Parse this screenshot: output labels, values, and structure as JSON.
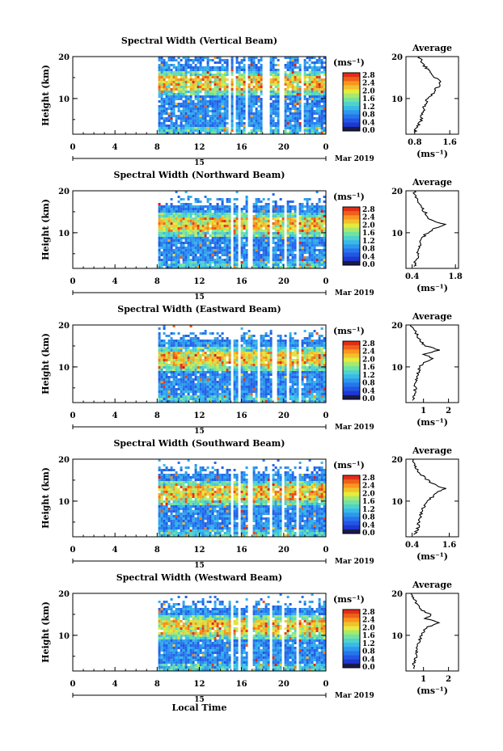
{
  "page": {
    "x_axis_title": "Local Time",
    "date_label": "Mar 2019",
    "day_label": "15",
    "colorbar_unit": "(ms⁻¹)",
    "avg_title": "Average",
    "avg_unit": "(ms⁻¹)",
    "y_label": "Height (km)"
  },
  "chart_data": [
    {
      "type": "heatmap",
      "title": "Spectral Width (Vertical Beam)",
      "ylabel": "Height (km)",
      "xlabel": "Local Time",
      "x_ticks": [
        "0",
        "4",
        "8",
        "12",
        "16",
        "20",
        "0"
      ],
      "y_ticks": [
        "20",
        "10"
      ],
      "xlim": [
        0,
        24
      ],
      "ylim": [
        1.5,
        20
      ],
      "data_start_hour": 8.1,
      "gaps_hours": [
        [
          14.8,
          15.0
        ],
        [
          15.3,
          15.5
        ],
        [
          16.4,
          16.6
        ],
        [
          18.1,
          18.6
        ],
        [
          19.7,
          20.1
        ],
        [
          21.7,
          22.0
        ]
      ],
      "colorbar": {
        "unit": "(ms⁻¹)",
        "ticks": [
          "2.8",
          "2.4",
          "2.0",
          "1.6",
          "1.2",
          "0.8",
          "0.4",
          "0.0"
        ],
        "range": [
          0,
          2.8
        ]
      },
      "profile": {
        "title": "Average",
        "xlabel": "(ms⁻¹)",
        "x_ticks": [
          "0.8",
          "1.6"
        ],
        "xlim": [
          0.6,
          1.8
        ],
        "y_ticks": [
          "20",
          "10"
        ],
        "height": [
          2,
          3,
          4,
          5,
          6,
          7,
          8,
          9,
          10,
          11,
          12,
          13,
          14,
          15,
          16,
          17,
          18,
          19,
          20
        ],
        "values": [
          0.8,
          0.85,
          0.9,
          0.95,
          0.95,
          1.0,
          1.0,
          1.05,
          1.1,
          1.2,
          1.25,
          1.35,
          1.4,
          1.25,
          1.15,
          1.1,
          1.0,
          0.95,
          0.9
        ]
      }
    },
    {
      "type": "heatmap",
      "title": "Spectral Width (Northward Beam)",
      "ylabel": "Height (km)",
      "xlabel": "Local Time",
      "x_ticks": [
        "0",
        "4",
        "8",
        "12",
        "16",
        "20",
        "0"
      ],
      "y_ticks": [
        "20",
        "10"
      ],
      "xlim": [
        0,
        24
      ],
      "ylim": [
        1.5,
        20
      ],
      "data_start_hour": 8.1,
      "gaps_hours": [
        [
          14.9,
          15.2
        ],
        [
          15.6,
          15.9
        ],
        [
          16.7,
          17.0
        ],
        [
          18.6,
          19.0
        ],
        [
          20.0,
          20.3
        ],
        [
          21.2,
          21.5
        ]
      ],
      "colorbar": {
        "unit": "(ms⁻¹)",
        "ticks": [
          "2.8",
          "2.4",
          "2.0",
          "1.6",
          "1.2",
          "0.8",
          "0.4",
          "0.0"
        ],
        "range": [
          0,
          2.8
        ]
      },
      "profile": {
        "title": "Average",
        "xlabel": "(ms⁻¹)",
        "x_ticks": [
          "0.4",
          "1.8"
        ],
        "xlim": [
          0.2,
          1.9
        ],
        "y_ticks": [
          "20",
          "10"
        ],
        "height": [
          2,
          3,
          4,
          5,
          6,
          7,
          8,
          9,
          10,
          11,
          12,
          13,
          14,
          15,
          16,
          17,
          18,
          19,
          20
        ],
        "values": [
          0.5,
          0.5,
          0.55,
          0.6,
          0.6,
          0.65,
          0.7,
          0.75,
          0.9,
          1.1,
          1.45,
          1.0,
          0.9,
          0.8,
          0.7,
          0.6,
          0.55,
          0.5,
          0.45
        ]
      }
    },
    {
      "type": "heatmap",
      "title": "Spectral Width (Eastward Beam)",
      "ylabel": "Height (km)",
      "xlabel": "Local Time",
      "x_ticks": [
        "0",
        "4",
        "8",
        "12",
        "16",
        "20",
        "0"
      ],
      "y_ticks": [
        "20",
        "10"
      ],
      "xlim": [
        0,
        24
      ],
      "ylim": [
        1.5,
        20
      ],
      "data_start_hour": 8.1,
      "gaps_hours": [
        [
          14.9,
          15.2
        ],
        [
          15.6,
          15.9
        ],
        [
          17.5,
          17.8
        ],
        [
          19.0,
          19.3
        ],
        [
          20.2,
          20.5
        ],
        [
          21.4,
          21.7
        ]
      ],
      "colorbar": {
        "unit": "(ms⁻¹)",
        "ticks": [
          "2.8",
          "2.4",
          "2.0",
          "1.6",
          "1.2",
          "0.8",
          "0.4",
          "0.0"
        ],
        "range": [
          0,
          2.8
        ]
      },
      "profile": {
        "title": "Average",
        "xlabel": "(ms⁻¹)",
        "x_ticks": [
          "1",
          "2"
        ],
        "xlim": [
          0.3,
          2.4
        ],
        "y_ticks": [
          "20",
          "10"
        ],
        "height": [
          2,
          3,
          4,
          5,
          6,
          7,
          8,
          9,
          10,
          11,
          12,
          13,
          14,
          15,
          16,
          17,
          18,
          19,
          20
        ],
        "values": [
          0.6,
          0.6,
          0.65,
          0.7,
          0.65,
          0.7,
          0.75,
          0.8,
          0.85,
          1.0,
          1.4,
          1.0,
          1.6,
          1.1,
          0.9,
          0.8,
          0.7,
          0.6,
          0.5
        ]
      }
    },
    {
      "type": "heatmap",
      "title": "Spectral Width (Southward Beam)",
      "ylabel": "Height (km)",
      "xlabel": "Local Time",
      "x_ticks": [
        "0",
        "4",
        "8",
        "12",
        "16",
        "20",
        "0"
      ],
      "y_ticks": [
        "20",
        "10"
      ],
      "xlim": [
        0,
        24
      ],
      "ylim": [
        1.5,
        20
      ],
      "data_start_hour": 8.1,
      "gaps_hours": [
        [
          14.9,
          15.2
        ],
        [
          15.6,
          15.9
        ],
        [
          16.7,
          17.0
        ],
        [
          18.6,
          18.9
        ],
        [
          19.8,
          20.1
        ],
        [
          21.2,
          21.5
        ]
      ],
      "colorbar": {
        "unit": "(ms⁻¹)",
        "ticks": [
          "2.8",
          "2.4",
          "2.0",
          "1.6",
          "1.2",
          "0.8",
          "0.4",
          "0.0"
        ],
        "range": [
          0,
          2.8
        ]
      },
      "profile": {
        "title": "Average",
        "xlabel": "(ms⁻¹)",
        "x_ticks": [
          "0.4",
          "1.6"
        ],
        "xlim": [
          0.2,
          1.9
        ],
        "y_ticks": [
          "20",
          "10"
        ],
        "height": [
          2,
          3,
          4,
          5,
          6,
          7,
          8,
          9,
          10,
          11,
          12,
          13,
          14,
          15,
          16,
          17,
          18,
          19,
          20
        ],
        "values": [
          0.5,
          0.55,
          0.6,
          0.6,
          0.65,
          0.7,
          0.75,
          0.8,
          0.9,
          1.05,
          1.2,
          1.45,
          1.1,
          0.9,
          0.75,
          0.6,
          0.5,
          0.45,
          0.45
        ]
      }
    },
    {
      "type": "heatmap",
      "title": "Spectral Width (Westward Beam)",
      "ylabel": "Height (km)",
      "xlabel": "Local Time",
      "x_ticks": [
        "0",
        "4",
        "8",
        "12",
        "16",
        "20",
        "0"
      ],
      "y_ticks": [
        "20",
        "10"
      ],
      "xlim": [
        0,
        24
      ],
      "ylim": [
        1.5,
        20
      ],
      "data_start_hour": 8.1,
      "gaps_hours": [
        [
          14.9,
          15.2
        ],
        [
          15.6,
          15.9
        ],
        [
          16.7,
          17.0
        ],
        [
          18.6,
          18.9
        ],
        [
          19.8,
          20.1
        ],
        [
          21.2,
          21.5
        ]
      ],
      "colorbar": {
        "unit": "(ms⁻¹)",
        "ticks": [
          "2.8",
          "2.4",
          "2.0",
          "1.6",
          "1.2",
          "0.8",
          "0.4",
          "0.0"
        ],
        "range": [
          0,
          2.8
        ]
      },
      "profile": {
        "title": "Average",
        "xlabel": "(ms⁻¹)",
        "x_ticks": [
          "1",
          "2"
        ],
        "xlim": [
          0.3,
          2.4
        ],
        "y_ticks": [
          "20",
          "10"
        ],
        "height": [
          2,
          3,
          4,
          5,
          6,
          7,
          8,
          9,
          10,
          11,
          12,
          13,
          14,
          15,
          16,
          17,
          18,
          19,
          20
        ],
        "values": [
          0.6,
          0.6,
          0.65,
          0.7,
          0.7,
          0.75,
          0.8,
          0.85,
          0.9,
          1.0,
          1.2,
          1.6,
          1.1,
          1.3,
          0.9,
          0.8,
          0.7,
          0.6,
          0.55
        ]
      }
    }
  ]
}
